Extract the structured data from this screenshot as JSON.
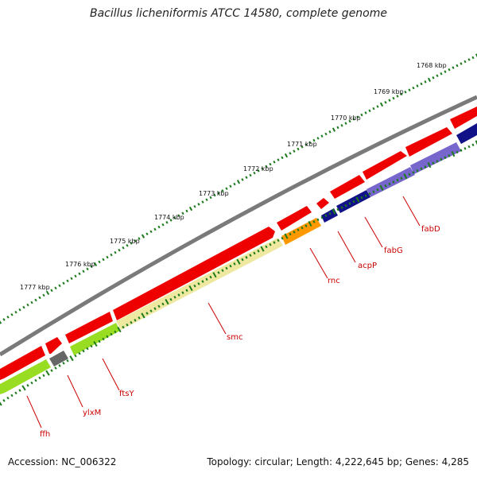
{
  "title": "Bacillus licheniformis ATCC 14580, complete genome",
  "footer": {
    "accession": "Accession: NC_006322",
    "summary": "Topology: circular; Length: 4,222,645 bp; Genes: 4,285"
  },
  "ruler": [
    "1768 kbp",
    "1769 kbp",
    "1770 kbp",
    "1771 kbp",
    "1772 kbp",
    "1773 kbp",
    "1774 kbp",
    "1775 kbp",
    "1776 kbp",
    "1777 kbp"
  ],
  "genes": [
    "ffh",
    "ylxM",
    "ftsY",
    "smc",
    "rnc",
    "acpP",
    "fabG",
    "fabD"
  ],
  "colors": {
    "backbone": "#7a7a7a",
    "cds_forward": "#ee0000",
    "cds_reverse": "#ee0000",
    "ticks": "#1a7a1a",
    "label_line": "#cc0000",
    "ffh": "#99dd22",
    "ylxM": "#666666",
    "ftsY": "#99dd22",
    "smc": "#eee8a0",
    "rnc": "#ff9900",
    "acpP": "#111188",
    "fabG": "#7766cc",
    "fabD": "#7766cc"
  }
}
